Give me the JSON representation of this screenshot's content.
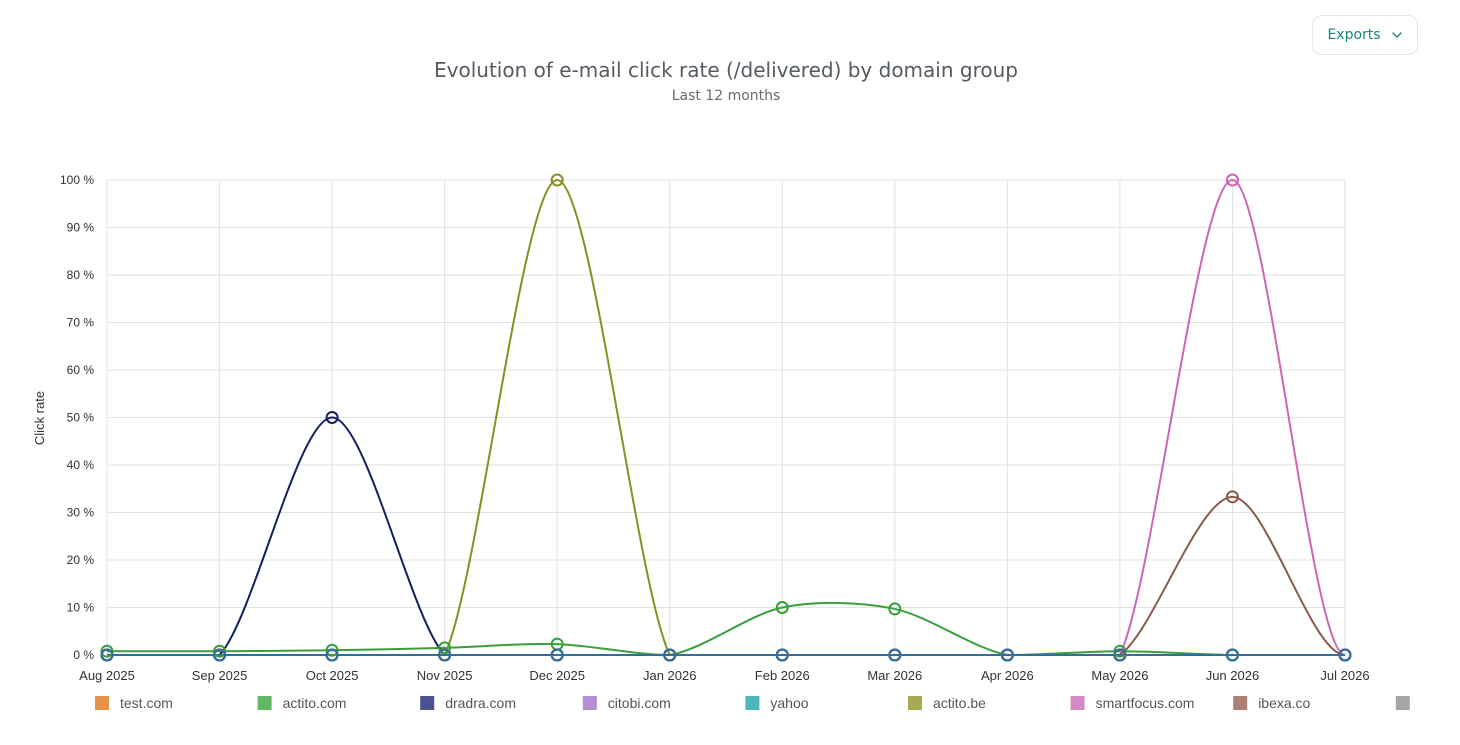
{
  "exports": {
    "label": "Exports"
  },
  "chart_data": {
    "type": "line",
    "title": "Evolution of e-mail click rate (/delivered) by domain group",
    "subtitle": "Last 12 months",
    "xlabel": "",
    "ylabel": "Click rate",
    "categories": [
      "Aug 2025",
      "Sep 2025",
      "Oct 2025",
      "Nov 2025",
      "Dec 2025",
      "Jan 2026",
      "Feb 2026",
      "Mar 2026",
      "Apr 2026",
      "May 2026",
      "Jun 2026",
      "Jul 2026"
    ],
    "ylim": [
      0,
      100
    ],
    "yticks": [
      0,
      10,
      20,
      30,
      40,
      50,
      60,
      70,
      80,
      90,
      100
    ],
    "ytick_suffix": " %",
    "grid": true,
    "legend": "bottom",
    "series": [
      {
        "name": "test.com",
        "color": "#e8914a",
        "values": [
          0,
          0,
          0,
          0,
          0,
          0,
          0,
          0,
          0,
          0,
          0,
          0
        ]
      },
      {
        "name": "actito.com",
        "color": "#3a9e3a",
        "legend_color": "#62b862",
        "values": [
          0.8,
          0.8,
          1.0,
          1.5,
          2.3,
          0,
          10,
          9.7,
          0,
          0.8,
          0,
          0
        ]
      },
      {
        "name": "dradra.com",
        "color": "#14215e",
        "legend_color": "#4a5290",
        "values": [
          0,
          0,
          50,
          0,
          0,
          0,
          0,
          0,
          0,
          0,
          0,
          0
        ]
      },
      {
        "name": "citobi.com",
        "color": "#a77fd0",
        "legend_color": "#b48fd6",
        "values": [
          0,
          0,
          0,
          0,
          0,
          0,
          0,
          0,
          0,
          0,
          0,
          0
        ]
      },
      {
        "name": "yahoo",
        "color": "#3aa8b0",
        "legend_color": "#4cb6bc",
        "values": [
          0,
          0,
          0,
          0,
          0,
          0,
          0,
          0,
          0,
          0,
          0,
          0
        ]
      },
      {
        "name": "actito.be",
        "color": "#8a8f24",
        "legend_color": "#a7a954",
        "values": [
          0,
          0,
          0,
          0,
          100,
          0,
          0,
          0,
          0,
          0,
          0,
          0
        ]
      },
      {
        "name": "smartfocus.com",
        "color": "#cc66b8",
        "legend_color": "#d58ac7",
        "values": [
          0,
          0,
          0,
          0,
          0,
          0,
          0,
          0,
          0,
          0,
          100,
          0
        ]
      },
      {
        "name": "ibexa.co",
        "color": "#8a5a4a",
        "legend_color": "#ad8076",
        "values": [
          0,
          0,
          0,
          0,
          0,
          0,
          0,
          0,
          0,
          0,
          33.3,
          0
        ]
      },
      {
        "name": "",
        "color": "#2e6f9e",
        "legend_color": "#a5a5a5",
        "values": [
          0,
          0,
          0,
          0,
          0,
          0,
          0,
          0,
          0,
          0,
          0,
          0
        ]
      }
    ]
  }
}
